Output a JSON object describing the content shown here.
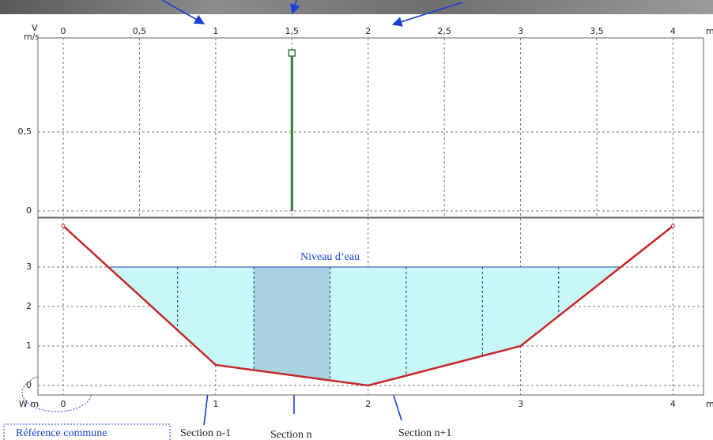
{
  "chart_data": [
    {
      "type": "stem",
      "y_label": "V",
      "y_unit": "m/s",
      "x_unit": "m",
      "x": [
        1.5
      ],
      "values": [
        1.0
      ],
      "color": "#2e7d32",
      "xlim": [
        -0.166,
        4.2
      ],
      "ylim": [
        -0.04,
        1.095
      ],
      "xticks": [
        0,
        {
          "value": 0.5,
          "label": "0,5"
        },
        1,
        {
          "value": 1.5,
          "label": "1,5"
        },
        2,
        {
          "value": 2.5,
          "label": "2,5"
        },
        3,
        {
          "value": 3.5,
          "label": "3,5"
        },
        4
      ],
      "yticks": [
        0,
        {
          "value": 0.5,
          "label": "0,5"
        }
      ],
      "grid": true
    },
    {
      "type": "profile",
      "y_label": "W m",
      "x_unit": "m",
      "x": [
        0,
        1,
        2,
        3,
        4
      ],
      "values": [
        4.04,
        0.52,
        0,
        1,
        4.04
      ],
      "color": "#c62828",
      "water_level": 3,
      "water_label": "Niveau d’eau",
      "water_color": "#c8f7f7",
      "section_edges": [
        0.75,
        1.25,
        1.75,
        2.25,
        2.75,
        3.25
      ],
      "highlight": [
        1.25,
        1.75
      ],
      "highlight_color": "#a9d2e0",
      "xlim": [
        -0.166,
        4.2
      ],
      "ylim": [
        -0.24,
        4.24
      ],
      "xticks": [
        0,
        1,
        2,
        3,
        4
      ],
      "yticks": [
        0,
        1,
        2,
        3
      ],
      "grid": true
    }
  ],
  "annotations": {
    "section_prev": "Section n-1",
    "section": "Section n",
    "section_next": "Section n+1",
    "reference": "Référence commune"
  }
}
